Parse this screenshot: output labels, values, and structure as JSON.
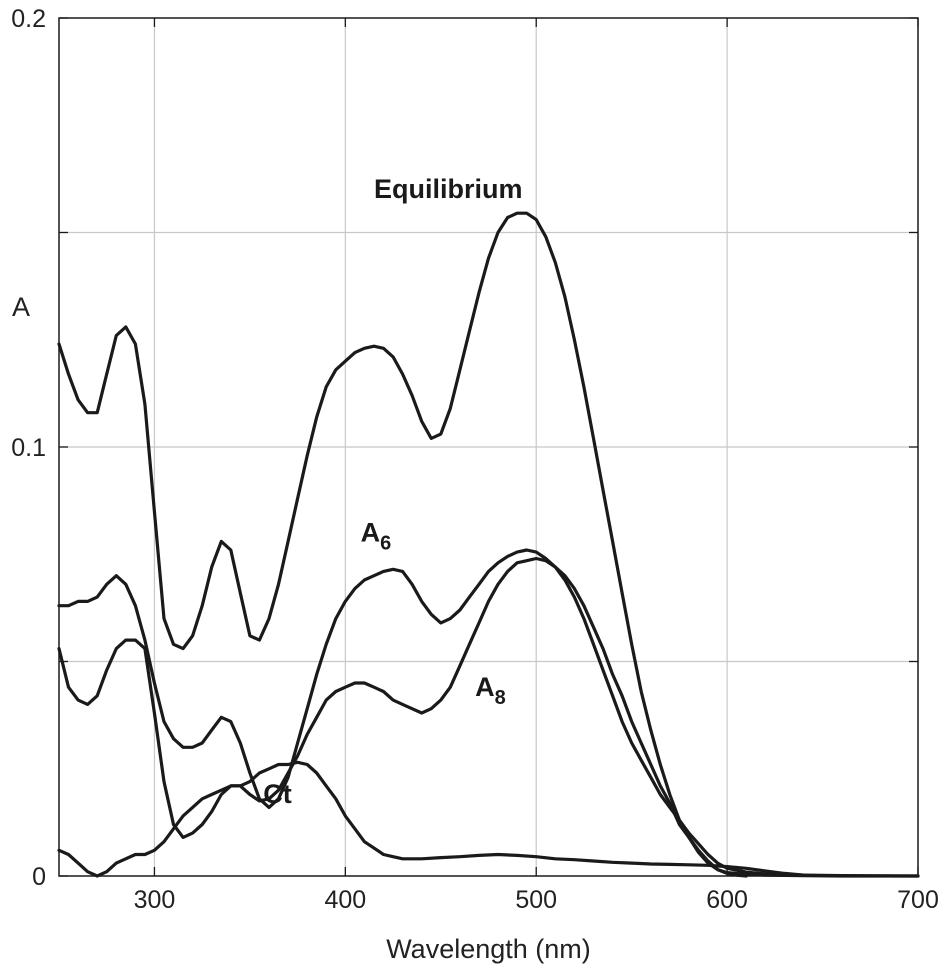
{
  "chart_data": {
    "type": "line",
    "title": "",
    "xlabel": "Wavelength (nm)",
    "ylabel": "A",
    "xlim": [
      250,
      700
    ],
    "ylim": [
      0,
      0.2
    ],
    "x_ticks": [
      300,
      400,
      500,
      600,
      700
    ],
    "x_tick_labels": [
      "300",
      "400",
      "500",
      "600",
      "700"
    ],
    "y_ticks": [
      0,
      0.05,
      0.1,
      0.15,
      0.2
    ],
    "y_tick_labels": [
      "0",
      "",
      "0.1",
      "",
      "0.2"
    ],
    "grid": true,
    "legend": "none",
    "series": [
      {
        "name": "Equilibrium",
        "label_parts": [
          {
            "text": "Equilibrium",
            "sub": false
          }
        ],
        "label_anchor": [
          415,
          0.158
        ],
        "points": [
          [
            250,
            0.124
          ],
          [
            255,
            0.117
          ],
          [
            260,
            0.111
          ],
          [
            265,
            0.108
          ],
          [
            270,
            0.108
          ],
          [
            275,
            0.117
          ],
          [
            280,
            0.126
          ],
          [
            285,
            0.128
          ],
          [
            290,
            0.124
          ],
          [
            295,
            0.11
          ],
          [
            300,
            0.085
          ],
          [
            305,
            0.06
          ],
          [
            310,
            0.054
          ],
          [
            315,
            0.053
          ],
          [
            320,
            0.056
          ],
          [
            325,
            0.063
          ],
          [
            330,
            0.072
          ],
          [
            335,
            0.078
          ],
          [
            340,
            0.076
          ],
          [
            345,
            0.066
          ],
          [
            350,
            0.056
          ],
          [
            355,
            0.055
          ],
          [
            360,
            0.06
          ],
          [
            365,
            0.068
          ],
          [
            370,
            0.078
          ],
          [
            375,
            0.088
          ],
          [
            380,
            0.098
          ],
          [
            385,
            0.107
          ],
          [
            390,
            0.114
          ],
          [
            395,
            0.118
          ],
          [
            400,
            0.12
          ],
          [
            405,
            0.122
          ],
          [
            410,
            0.123
          ],
          [
            415,
            0.1235
          ],
          [
            420,
            0.123
          ],
          [
            425,
            0.121
          ],
          [
            430,
            0.117
          ],
          [
            435,
            0.112
          ],
          [
            440,
            0.106
          ],
          [
            445,
            0.102
          ],
          [
            450,
            0.103
          ],
          [
            455,
            0.109
          ],
          [
            460,
            0.118
          ],
          [
            465,
            0.127
          ],
          [
            470,
            0.136
          ],
          [
            475,
            0.144
          ],
          [
            480,
            0.15
          ],
          [
            485,
            0.1535
          ],
          [
            490,
            0.1545
          ],
          [
            495,
            0.1545
          ],
          [
            500,
            0.153
          ],
          [
            505,
            0.149
          ],
          [
            510,
            0.143
          ],
          [
            515,
            0.135
          ],
          [
            520,
            0.125
          ],
          [
            525,
            0.114
          ],
          [
            530,
            0.102
          ],
          [
            535,
            0.09
          ],
          [
            540,
            0.078
          ],
          [
            545,
            0.066
          ],
          [
            550,
            0.054
          ],
          [
            555,
            0.043
          ],
          [
            560,
            0.034
          ],
          [
            565,
            0.026
          ],
          [
            570,
            0.019
          ],
          [
            575,
            0.013
          ],
          [
            580,
            0.009
          ],
          [
            585,
            0.0055
          ],
          [
            590,
            0.003
          ],
          [
            595,
            0.0015
          ],
          [
            600,
            0.0008
          ],
          [
            610,
            0.0004
          ],
          [
            620,
            0.0002
          ],
          [
            640,
            0.0001
          ],
          [
            660,
            0.0
          ],
          [
            700,
            0.0
          ]
        ]
      },
      {
        "name": "A6",
        "label_parts": [
          {
            "text": "A",
            "sub": false
          },
          {
            "text": "6",
            "sub": true
          }
        ],
        "label_anchor": [
          408,
          0.078
        ],
        "points": [
          [
            250,
            0.063
          ],
          [
            255,
            0.063
          ],
          [
            260,
            0.064
          ],
          [
            265,
            0.064
          ],
          [
            270,
            0.065
          ],
          [
            275,
            0.068
          ],
          [
            280,
            0.07
          ],
          [
            285,
            0.068
          ],
          [
            290,
            0.063
          ],
          [
            295,
            0.055
          ],
          [
            300,
            0.045
          ],
          [
            305,
            0.036
          ],
          [
            310,
            0.032
          ],
          [
            315,
            0.03
          ],
          [
            320,
            0.03
          ],
          [
            325,
            0.031
          ],
          [
            330,
            0.034
          ],
          [
            335,
            0.037
          ],
          [
            340,
            0.036
          ],
          [
            345,
            0.031
          ],
          [
            350,
            0.024
          ],
          [
            355,
            0.018
          ],
          [
            360,
            0.016
          ],
          [
            365,
            0.018
          ],
          [
            370,
            0.023
          ],
          [
            375,
            0.031
          ],
          [
            380,
            0.039
          ],
          [
            385,
            0.047
          ],
          [
            390,
            0.054
          ],
          [
            395,
            0.06
          ],
          [
            400,
            0.064
          ],
          [
            405,
            0.067
          ],
          [
            410,
            0.069
          ],
          [
            415,
            0.07
          ],
          [
            420,
            0.071
          ],
          [
            425,
            0.0715
          ],
          [
            430,
            0.071
          ],
          [
            435,
            0.068
          ],
          [
            440,
            0.064
          ],
          [
            445,
            0.061
          ],
          [
            450,
            0.059
          ],
          [
            455,
            0.06
          ],
          [
            460,
            0.062
          ],
          [
            465,
            0.065
          ],
          [
            470,
            0.068
          ],
          [
            475,
            0.071
          ],
          [
            480,
            0.073
          ],
          [
            485,
            0.0745
          ],
          [
            490,
            0.0755
          ],
          [
            495,
            0.076
          ],
          [
            500,
            0.0755
          ],
          [
            505,
            0.074
          ],
          [
            510,
            0.072
          ],
          [
            515,
            0.069
          ],
          [
            520,
            0.065
          ],
          [
            525,
            0.06
          ],
          [
            530,
            0.054
          ],
          [
            535,
            0.048
          ],
          [
            540,
            0.042
          ],
          [
            545,
            0.036
          ],
          [
            550,
            0.031
          ],
          [
            555,
            0.027
          ],
          [
            560,
            0.023
          ],
          [
            565,
            0.019
          ],
          [
            570,
            0.016
          ],
          [
            575,
            0.013
          ],
          [
            580,
            0.01
          ],
          [
            585,
            0.0075
          ],
          [
            590,
            0.005
          ],
          [
            595,
            0.003
          ],
          [
            600,
            0.0018
          ],
          [
            610,
            0.0009
          ],
          [
            620,
            0.0005
          ],
          [
            640,
            0.0002
          ],
          [
            660,
            0.0001
          ],
          [
            700,
            0.0
          ]
        ]
      },
      {
        "name": "A8",
        "label_parts": [
          {
            "text": "A",
            "sub": false
          },
          {
            "text": "8",
            "sub": true
          }
        ],
        "label_anchor": [
          468,
          0.042
        ],
        "points": [
          [
            250,
            0.053
          ],
          [
            255,
            0.044
          ],
          [
            260,
            0.041
          ],
          [
            265,
            0.04
          ],
          [
            270,
            0.042
          ],
          [
            275,
            0.048
          ],
          [
            280,
            0.053
          ],
          [
            285,
            0.055
          ],
          [
            290,
            0.055
          ],
          [
            295,
            0.053
          ],
          [
            300,
            0.038
          ],
          [
            305,
            0.022
          ],
          [
            310,
            0.012
          ],
          [
            315,
            0.009
          ],
          [
            320,
            0.01
          ],
          [
            325,
            0.012
          ],
          [
            330,
            0.015
          ],
          [
            335,
            0.019
          ],
          [
            340,
            0.021
          ],
          [
            345,
            0.021
          ],
          [
            350,
            0.019
          ],
          [
            355,
            0.0175
          ],
          [
            360,
            0.018
          ],
          [
            365,
            0.02
          ],
          [
            370,
            0.024
          ],
          [
            375,
            0.028
          ],
          [
            380,
            0.033
          ],
          [
            385,
            0.037
          ],
          [
            390,
            0.041
          ],
          [
            395,
            0.043
          ],
          [
            400,
            0.044
          ],
          [
            405,
            0.045
          ],
          [
            410,
            0.045
          ],
          [
            415,
            0.044
          ],
          [
            420,
            0.043
          ],
          [
            425,
            0.041
          ],
          [
            430,
            0.04
          ],
          [
            435,
            0.039
          ],
          [
            440,
            0.038
          ],
          [
            445,
            0.039
          ],
          [
            450,
            0.041
          ],
          [
            455,
            0.044
          ],
          [
            460,
            0.049
          ],
          [
            465,
            0.054
          ],
          [
            470,
            0.059
          ],
          [
            475,
            0.064
          ],
          [
            480,
            0.068
          ],
          [
            485,
            0.071
          ],
          [
            490,
            0.073
          ],
          [
            495,
            0.0735
          ],
          [
            500,
            0.074
          ],
          [
            505,
            0.0735
          ],
          [
            510,
            0.072
          ],
          [
            515,
            0.07
          ],
          [
            520,
            0.067
          ],
          [
            525,
            0.063
          ],
          [
            530,
            0.058
          ],
          [
            535,
            0.053
          ],
          [
            540,
            0.047
          ],
          [
            545,
            0.042
          ],
          [
            550,
            0.036
          ],
          [
            555,
            0.031
          ],
          [
            560,
            0.026
          ],
          [
            565,
            0.021
          ],
          [
            570,
            0.017
          ],
          [
            575,
            0.012
          ],
          [
            580,
            0.009
          ],
          [
            585,
            0.006
          ],
          [
            590,
            0.0035
          ],
          [
            595,
            0.0015
          ],
          [
            600,
            0.0006
          ],
          [
            605,
            0.0002
          ],
          [
            610,
            0.0
          ]
        ]
      },
      {
        "name": "Ct",
        "label_parts": [
          {
            "text": "Ct",
            "sub": false
          }
        ],
        "label_anchor": [
          357,
          0.017
        ],
        "points": [
          [
            250,
            0.006
          ],
          [
            255,
            0.005
          ],
          [
            260,
            0.003
          ],
          [
            265,
            0.001
          ],
          [
            270,
            0.0
          ],
          [
            275,
            0.001
          ],
          [
            280,
            0.003
          ],
          [
            285,
            0.004
          ],
          [
            290,
            0.005
          ],
          [
            295,
            0.005
          ],
          [
            300,
            0.006
          ],
          [
            305,
            0.008
          ],
          [
            310,
            0.011
          ],
          [
            315,
            0.014
          ],
          [
            320,
            0.016
          ],
          [
            325,
            0.018
          ],
          [
            330,
            0.019
          ],
          [
            335,
            0.02
          ],
          [
            340,
            0.021
          ],
          [
            345,
            0.021
          ],
          [
            350,
            0.022
          ],
          [
            355,
            0.024
          ],
          [
            360,
            0.025
          ],
          [
            365,
            0.026
          ],
          [
            370,
            0.026
          ],
          [
            375,
            0.0265
          ],
          [
            380,
            0.026
          ],
          [
            385,
            0.024
          ],
          [
            390,
            0.021
          ],
          [
            395,
            0.018
          ],
          [
            400,
            0.014
          ],
          [
            405,
            0.011
          ],
          [
            410,
            0.008
          ],
          [
            415,
            0.0065
          ],
          [
            420,
            0.005
          ],
          [
            425,
            0.0045
          ],
          [
            430,
            0.004
          ],
          [
            440,
            0.004
          ],
          [
            450,
            0.0043
          ],
          [
            460,
            0.0045
          ],
          [
            470,
            0.0048
          ],
          [
            480,
            0.005
          ],
          [
            490,
            0.0048
          ],
          [
            500,
            0.0045
          ],
          [
            510,
            0.004
          ],
          [
            520,
            0.0038
          ],
          [
            530,
            0.0035
          ],
          [
            540,
            0.0032
          ],
          [
            550,
            0.003
          ],
          [
            560,
            0.0028
          ],
          [
            570,
            0.0027
          ],
          [
            580,
            0.0026
          ],
          [
            590,
            0.0025
          ],
          [
            600,
            0.0022
          ],
          [
            610,
            0.0018
          ],
          [
            620,
            0.0012
          ],
          [
            630,
            0.0006
          ],
          [
            640,
            0.0002
          ]
        ]
      }
    ]
  }
}
